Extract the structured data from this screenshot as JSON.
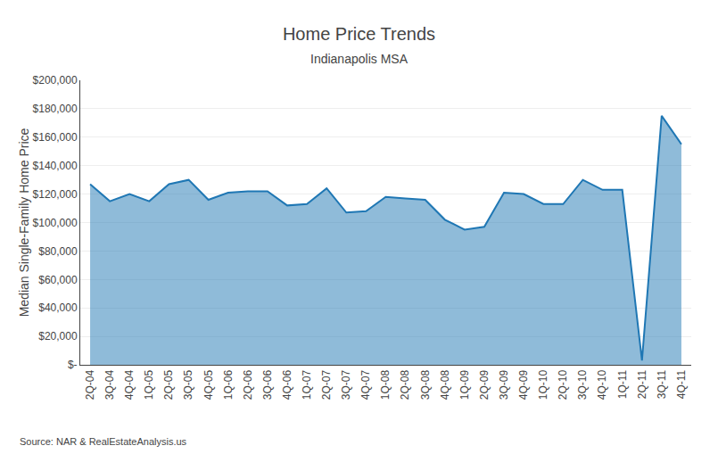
{
  "chart_data": {
    "type": "area",
    "title": "Home Price Trends",
    "subtitle": "Indianapolis MSA",
    "ylabel": "Median Single-Family Home Price",
    "source": "Source: NAR & RealEstateAnalysis.us",
    "categories": [
      "2Q-04",
      "3Q-04",
      "4Q-04",
      "1Q-05",
      "2Q-05",
      "3Q-05",
      "4Q-05",
      "1Q-06",
      "2Q-06",
      "3Q-06",
      "4Q-06",
      "1Q-07",
      "2Q-07",
      "3Q-07",
      "4Q-07",
      "1Q-08",
      "2Q-08",
      "3Q-08",
      "4Q-08",
      "1Q-09",
      "2Q-09",
      "3Q-09",
      "4Q-09",
      "1Q-10",
      "2Q-10",
      "3Q-10",
      "4Q-10",
      "1Q-11",
      "2Q-11",
      "3Q-11",
      "4Q-11"
    ],
    "values": [
      127000,
      115000,
      120000,
      115000,
      127000,
      130000,
      116000,
      121000,
      122000,
      122000,
      112000,
      113000,
      124000,
      107000,
      108000,
      118000,
      117000,
      116000,
      102000,
      95000,
      97000,
      121000,
      120000,
      113000,
      113000,
      130000,
      123000,
      123000,
      3000,
      175000,
      155000
    ],
    "ylim": [
      0,
      200000
    ],
    "yticks": [
      {
        "value": 0,
        "label": "$-"
      },
      {
        "value": 20000,
        "label": "$20,000"
      },
      {
        "value": 40000,
        "label": "$40,000"
      },
      {
        "value": 60000,
        "label": "$60,000"
      },
      {
        "value": 80000,
        "label": "$80,000"
      },
      {
        "value": 100000,
        "label": "$100,000"
      },
      {
        "value": 120000,
        "label": "$120,000"
      },
      {
        "value": 140000,
        "label": "$140,000"
      },
      {
        "value": 160000,
        "label": "$160,000"
      },
      {
        "value": 180000,
        "label": "$180,000"
      },
      {
        "value": 200000,
        "label": "$200,000"
      }
    ],
    "grid": true
  }
}
